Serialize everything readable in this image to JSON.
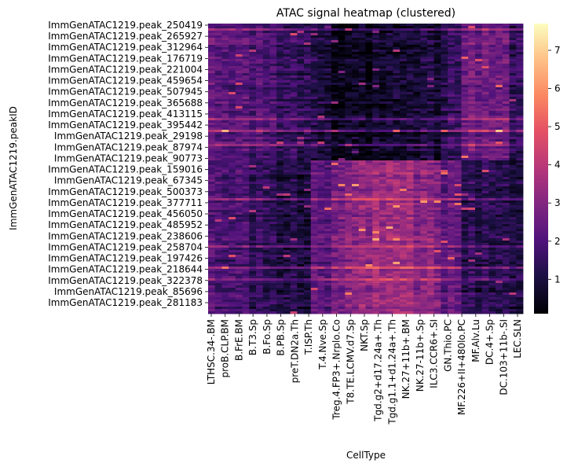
{
  "chart_data": {
    "type": "heatmap",
    "title": "ATAC signal heatmap (clustered)",
    "xlabel": "CellType",
    "ylabel": "ImmGenATAC1219.peakID",
    "colormap": "magma",
    "colorbar": {
      "min": 0.1,
      "max": 7.7,
      "ticks": [
        1,
        2,
        3,
        4,
        5,
        6,
        7
      ]
    },
    "x_tick_labels": [
      "LTHSC.34-.BM",
      "proB.CLP.BM",
      "B.FrE.BM",
      "B.T3.Sp",
      "B.Fo.Sp",
      "B.PB.Sp",
      "preT.DN2a.Th",
      "T.ISP.Th",
      "T.4.Nve.Sp",
      "Treg.4.FP3+.Nrplo.Co",
      "T8.TE.LCMV.d7.Sp",
      "NKT.Sp",
      "Tgd.g2+d17.24a+.Th",
      "Tgd.g1.1+d1.24a+.Th",
      "NK.27+11b+.BM",
      "NK.27-11b+.Sp",
      "ILC3.CCR6+.SI",
      "GN.Thio.PC",
      "MF.226+II+480lo.PC",
      "MF.Alv.Lu",
      "DC.4+.Sp",
      "DC.103+11b-.SI",
      "LEC.SLN"
    ],
    "y_tick_labels": [
      "ImmGenATAC1219.peak_250419",
      "ImmGenATAC1219.peak_265927",
      "ImmGenATAC1219.peak_312964",
      "ImmGenATAC1219.peak_176719",
      "ImmGenATAC1219.peak_221004",
      "ImmGenATAC1219.peak_459654",
      "ImmGenATAC1219.peak_507945",
      "ImmGenATAC1219.peak_365688",
      "ImmGenATAC1219.peak_413115",
      "ImmGenATAC1219.peak_395442",
      "ImmGenATAC1219.peak_29198",
      "ImmGenATAC1219.peak_87974",
      "ImmGenATAC1219.peak_90773",
      "ImmGenATAC1219.peak_159016",
      "ImmGenATAC1219.peak_67345",
      "ImmGenATAC1219.peak_500373",
      "ImmGenATAC1219.peak_377711",
      "ImmGenATAC1219.peak_456050",
      "ImmGenATAC1219.peak_485952",
      "ImmGenATAC1219.peak_238606",
      "ImmGenATAC1219.peak_258704",
      "ImmGenATAC1219.peak_197426",
      "ImmGenATAC1219.peak_218644",
      "ImmGenATAC1219.peak_322378",
      "ImmGenATAC1219.peak_85696",
      "ImmGenATAC1219.peak_281183"
    ],
    "n_columns": 46,
    "column_groups": [
      {
        "cols": [
          0,
          5
        ],
        "cluster1": 2.2,
        "cluster2": 1.9
      },
      {
        "cols": [
          6,
          9
        ],
        "cluster1": 1.9,
        "cluster2": 1.4
      },
      {
        "cols": [
          10,
          14
        ],
        "cluster1": 1.5,
        "cluster2": 1.1
      },
      {
        "cols": [
          15,
          17
        ],
        "cluster1": 1.1,
        "cluster2": 2.3
      },
      {
        "cols": [
          18,
          21
        ],
        "cluster1": 0.6,
        "cluster2": 3.0
      },
      {
        "cols": [
          22,
          29
        ],
        "cluster1": 0.6,
        "cluster2": 3.3
      },
      {
        "cols": [
          30,
          33
        ],
        "cluster1": 0.9,
        "cluster2": 3.0
      },
      {
        "cols": [
          34,
          36
        ],
        "cluster1": 1.5,
        "cluster2": 2.4
      },
      {
        "cols": [
          37,
          43
        ],
        "cluster1": 2.6,
        "cluster2": 1.3
      },
      {
        "cols": [
          44,
          45
        ],
        "cluster1": 1.4,
        "cluster2": 1.0
      }
    ],
    "cluster_boundary_peak": "ImmGenATAC1219.peak_67345",
    "row_clusters": [
      {
        "name": "cluster1",
        "peaks_from": "ImmGenATAC1219.peak_250419",
        "peaks_to": "ImmGenATAC1219.peak_67345"
      },
      {
        "name": "cluster2",
        "peaks_from": "ImmGenATAC1219.peak_500373",
        "peaks_to": "ImmGenATAC1219.peak_281183"
      }
    ]
  }
}
